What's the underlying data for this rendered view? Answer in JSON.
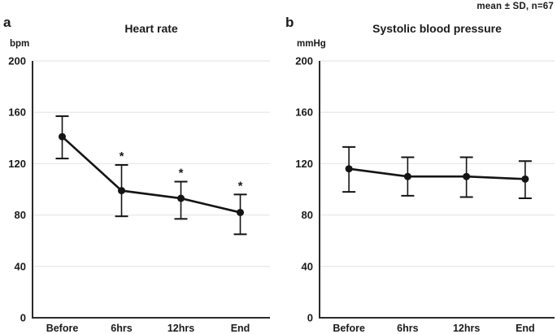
{
  "annotation": "mean ± SD, n=67",
  "colors": {
    "background": "#ffffff",
    "text": "#1a1a1a",
    "axis": "#2b2b2b",
    "grid": "#e8e8e8",
    "series": "#141414"
  },
  "chart_data": [
    {
      "type": "line",
      "panel_label": "a",
      "title": "Heart rate",
      "unit": "bpm",
      "categories": [
        "Before",
        "6hrs",
        "12hrs",
        "End"
      ],
      "yticks": [
        0,
        40,
        80,
        120,
        160,
        200
      ],
      "ylim": [
        0,
        200
      ],
      "grid": true,
      "legend": "none",
      "error_bars": "mean ± SD",
      "series": [
        {
          "name": "Heart rate (mean)",
          "means": [
            141,
            99,
            93,
            82
          ],
          "upper": [
            157,
            119,
            106,
            96
          ],
          "lower": [
            124,
            79,
            77,
            65
          ],
          "significance": [
            "",
            "*",
            "*",
            "*"
          ]
        }
      ]
    },
    {
      "type": "line",
      "panel_label": "b",
      "title": "Systolic blood pressure",
      "unit": "mmHg",
      "categories": [
        "Before",
        "6hrs",
        "12hrs",
        "End"
      ],
      "yticks": [
        0,
        40,
        80,
        120,
        160,
        200
      ],
      "ylim": [
        0,
        200
      ],
      "grid": true,
      "legend": "none",
      "error_bars": "mean ± SD",
      "series": [
        {
          "name": "Systolic blood pressure (mean)",
          "means": [
            116,
            110,
            110,
            108
          ],
          "upper": [
            133,
            125,
            125,
            122
          ],
          "lower": [
            98,
            95,
            94,
            93
          ],
          "significance": [
            "",
            "",
            "",
            ""
          ]
        }
      ]
    }
  ]
}
